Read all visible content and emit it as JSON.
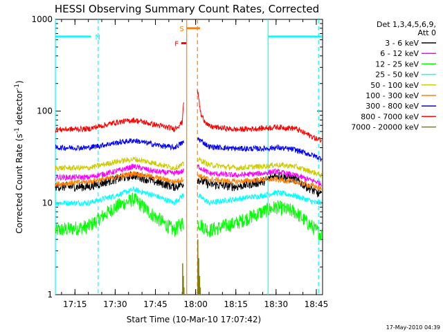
{
  "chart_data": {
    "type": "line",
    "title": "HESSI Observing Summary Count Rates, Corrected",
    "xlabel": "Start Time (10-Mar-10 17:07:42)",
    "ylabel": "Corrected Count Rate (s",
    "ylabel_sup1": "-1",
    "ylabel_mid": " detector",
    "ylabel_sup2": "-1",
    "ylabel_end": ")",
    "ylim": [
      1,
      1000
    ],
    "yscale": "log",
    "xlim": [
      "17:07:42",
      "18:47:20"
    ],
    "x_ticks": [
      "17:15",
      "17:30",
      "17:45",
      "18:00",
      "18:15",
      "18:30",
      "18:45"
    ],
    "y_ticks": [
      "1",
      "10",
      "100",
      "1000"
    ],
    "timestamp": "17-May-2010 04:39",
    "legend_header": [
      "Det 1,3,4,5,6,9,",
      "Att 0"
    ],
    "legend_position": "right",
    "gap": {
      "start": "17:55:40",
      "end": "18:00:40"
    },
    "series": [
      {
        "name": "3 - 6 keV",
        "color": "#000000",
        "points": [
          [
            "17:07:42",
            15
          ],
          [
            "17:20",
            15
          ],
          [
            "17:30",
            18
          ],
          [
            "17:37",
            20
          ],
          [
            "17:45",
            17
          ],
          [
            "17:52",
            15
          ],
          [
            "17:55",
            16
          ],
          [
            "18:01",
            18
          ],
          [
            "18:05",
            16
          ],
          [
            "18:15",
            15
          ],
          [
            "18:25",
            17
          ],
          [
            "18:30",
            20
          ],
          [
            "18:37",
            18
          ],
          [
            "18:45",
            13
          ],
          [
            "18:47",
            12
          ]
        ]
      },
      {
        "name": "6 - 12 keV",
        "color": "#ff00ff",
        "points": [
          [
            "17:07:42",
            19
          ],
          [
            "17:20",
            19
          ],
          [
            "17:30",
            22
          ],
          [
            "17:37",
            25
          ],
          [
            "17:45",
            22
          ],
          [
            "17:52",
            21
          ],
          [
            "17:55",
            22
          ],
          [
            "18:01",
            25
          ],
          [
            "18:05",
            21
          ],
          [
            "18:15",
            20
          ],
          [
            "18:25",
            21
          ],
          [
            "18:30",
            22
          ],
          [
            "18:37",
            20
          ],
          [
            "18:45",
            17
          ],
          [
            "18:47",
            16
          ]
        ]
      },
      {
        "name": "12 - 25 keV",
        "color": "#00ff00",
        "points": [
          [
            "17:07:42",
            5
          ],
          [
            "17:20",
            5.5
          ],
          [
            "17:30",
            9
          ],
          [
            "17:37",
            11
          ],
          [
            "17:45",
            7
          ],
          [
            "17:52",
            5
          ],
          [
            "17:55",
            6
          ],
          [
            "18:01",
            6
          ],
          [
            "18:05",
            5
          ],
          [
            "18:15",
            6
          ],
          [
            "18:25",
            8
          ],
          [
            "18:30",
            9
          ],
          [
            "18:37",
            8
          ],
          [
            "18:45",
            5
          ],
          [
            "18:47",
            4.5
          ]
        ]
      },
      {
        "name": "25 - 50 keV",
        "color": "#00ffff",
        "points": [
          [
            "17:07:42",
            10
          ],
          [
            "17:20",
            10
          ],
          [
            "17:30",
            12
          ],
          [
            "17:37",
            14
          ],
          [
            "17:45",
            12
          ],
          [
            "17:52",
            10
          ],
          [
            "17:55",
            12
          ],
          [
            "18:01",
            12
          ],
          [
            "18:05",
            10
          ],
          [
            "18:15",
            11
          ],
          [
            "18:25",
            12
          ],
          [
            "18:30",
            13
          ],
          [
            "18:37",
            12
          ],
          [
            "18:45",
            10
          ],
          [
            "18:47",
            10
          ]
        ]
      },
      {
        "name": "50 - 100 keV",
        "color": "#cccc00",
        "points": [
          [
            "17:07:42",
            24
          ],
          [
            "17:20",
            24
          ],
          [
            "17:30",
            28
          ],
          [
            "17:37",
            30
          ],
          [
            "17:45",
            27
          ],
          [
            "17:52",
            24
          ],
          [
            "17:55",
            26
          ],
          [
            "18:01",
            30
          ],
          [
            "18:05",
            26
          ],
          [
            "18:15",
            24
          ],
          [
            "18:25",
            25
          ],
          [
            "18:30",
            26
          ],
          [
            "18:37",
            25
          ],
          [
            "18:45",
            21
          ],
          [
            "18:47",
            20
          ]
        ]
      },
      {
        "name": "100 - 300 keV",
        "color": "#ff8000",
        "points": [
          [
            "17:07:42",
            16
          ],
          [
            "17:20",
            17
          ],
          [
            "17:30",
            19
          ],
          [
            "17:37",
            21
          ],
          [
            "17:45",
            19
          ],
          [
            "17:52",
            17
          ],
          [
            "17:55",
            18
          ],
          [
            "18:01",
            20
          ],
          [
            "18:05",
            18
          ],
          [
            "18:15",
            17
          ],
          [
            "18:25",
            18
          ],
          [
            "18:30",
            18
          ],
          [
            "18:37",
            17
          ],
          [
            "18:45",
            15
          ],
          [
            "18:47",
            14
          ]
        ]
      },
      {
        "name": "300 - 800 keV",
        "color": "#0000ff",
        "points": [
          [
            "17:07:42",
            40
          ],
          [
            "17:20",
            40
          ],
          [
            "17:30",
            45
          ],
          [
            "17:37",
            48
          ],
          [
            "17:45",
            43
          ],
          [
            "17:52",
            40
          ],
          [
            "17:55",
            45
          ],
          [
            "18:01",
            50
          ],
          [
            "18:05",
            41
          ],
          [
            "18:15",
            39
          ],
          [
            "18:25",
            39
          ],
          [
            "18:30",
            40
          ],
          [
            "18:37",
            38
          ],
          [
            "18:45",
            32
          ],
          [
            "18:47",
            30
          ]
        ]
      },
      {
        "name": "800 - 7000 keV",
        "color": "#ff0000",
        "points": [
          [
            "17:07:42",
            63
          ],
          [
            "17:20",
            64
          ],
          [
            "17:30",
            75
          ],
          [
            "17:37",
            80
          ],
          [
            "17:45",
            71
          ],
          [
            "17:52",
            64
          ],
          [
            "17:55",
            75
          ],
          [
            "17:55:30",
            130
          ],
          [
            "18:00:50",
            160
          ],
          [
            "18:02",
            90
          ],
          [
            "18:05",
            68
          ],
          [
            "18:15",
            63
          ],
          [
            "18:25",
            65
          ],
          [
            "18:30",
            67
          ],
          [
            "18:37",
            65
          ],
          [
            "18:45",
            50
          ],
          [
            "18:47",
            48
          ]
        ]
      },
      {
        "name": "7000 - 20000 keV",
        "color": "#808000",
        "points": [
          [
            "17:55:10",
            2.2
          ],
          [
            "17:55:25",
            1.6
          ],
          [
            "17:55:40",
            1.2
          ],
          [
            "18:00:50",
            4
          ],
          [
            "18:01:10",
            2.5
          ],
          [
            "18:01:30",
            1.6
          ],
          [
            "18:01:45",
            1.2
          ]
        ]
      }
    ],
    "annotations": [
      {
        "label": "N",
        "color": "#00ffff",
        "level": 650,
        "segments": [
          [
            "17:07:42",
            "17:21:00"
          ],
          [
            "18:27:00",
            "18:47:00"
          ]
        ],
        "dashed_at": [
          "17:23:40",
          "18:45:50"
        ],
        "solid_at": [
          "17:07:42",
          "18:27:00"
        ]
      },
      {
        "label": "S",
        "color": "#ff8000",
        "level": 800,
        "segments": [
          [
            "17:56:40",
            "18:01:40"
          ]
        ],
        "dashed_at": [
          "18:00:40"
        ],
        "solid_at": [
          "17:56:40"
        ]
      },
      {
        "label": "F",
        "color": "#ff0000",
        "level": 550,
        "segments": [
          [
            "17:54:40",
            "17:56:30"
          ]
        ],
        "solid_at": [],
        "dashed_at": []
      }
    ]
  }
}
